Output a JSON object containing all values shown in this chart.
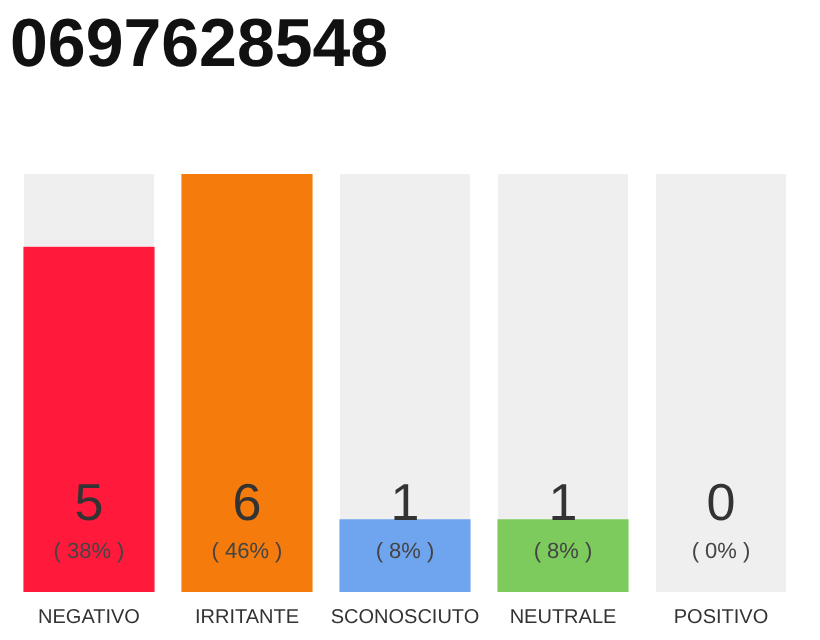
{
  "chart_data": {
    "type": "bar",
    "title": "0697628548",
    "categories": [
      "NEGATIVO",
      "IRRITANTE",
      "SCONOSCIUTO",
      "NEUTRALE",
      "POSITIVO"
    ],
    "values": [
      38,
      46,
      8,
      8,
      0
    ],
    "colors": [
      "#ff1a3c",
      "#f57c0c",
      "#6fa4ee",
      "#7ccb5c",
      "#cccccc"
    ],
    "value_labels": [
      "( 38% )",
      "( 46% )",
      "( 8% )",
      "( 8% )",
      "( 0% )"
    ],
    "annotations": [
      "5",
      "6",
      "1",
      "1",
      "0"
    ],
    "tick_labels": "x"
  }
}
